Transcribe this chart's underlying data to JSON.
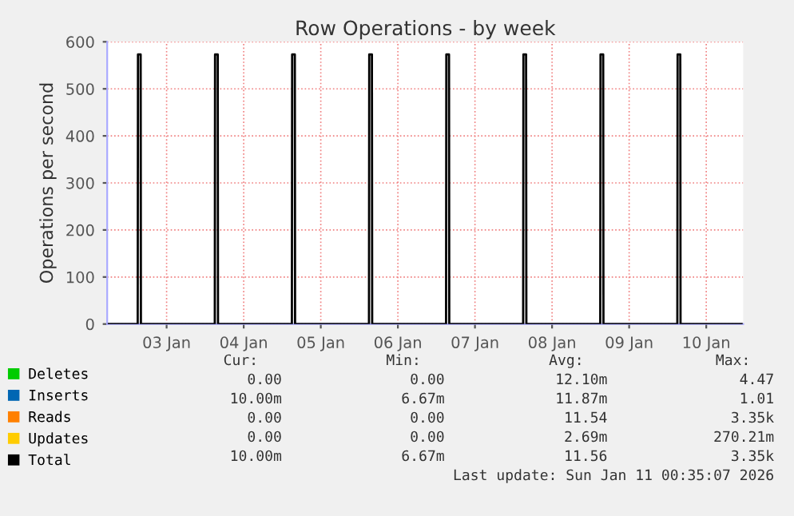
{
  "chart_data": {
    "type": "line",
    "title": "Row Operations - by week",
    "ylabel": "Operations per second",
    "xlim": [
      "2026-01-02T17:30",
      "2026-01-10T23:30"
    ],
    "xticks": [
      {
        "value": "2026-01-03T12:00",
        "label": "03 Jan"
      },
      {
        "value": "2026-01-04T12:00",
        "label": "04 Jan"
      },
      {
        "value": "2026-01-05T12:00",
        "label": "05 Jan"
      },
      {
        "value": "2026-01-06T12:00",
        "label": "06 Jan"
      },
      {
        "value": "2026-01-07T12:00",
        "label": "07 Jan"
      },
      {
        "value": "2026-01-08T12:00",
        "label": "08 Jan"
      },
      {
        "value": "2026-01-09T12:00",
        "label": "09 Jan"
      },
      {
        "value": "2026-01-10T12:00",
        "label": "10 Jan"
      }
    ],
    "ylim": [
      0,
      600
    ],
    "yticks": [
      0,
      100,
      200,
      300,
      400,
      500,
      600
    ],
    "grid": true,
    "legend": "bottom",
    "series": [
      {
        "name": "Deletes",
        "color": "#00cc00"
      },
      {
        "name": "Inserts",
        "color": "#0066b3"
      },
      {
        "name": "Reads",
        "color": "#ff8000"
      },
      {
        "name": "Updates",
        "color": "#ffcc00"
      },
      {
        "name": "Total",
        "color": "#000000",
        "x": [
          "2026-01-02T18:00",
          "2026-01-03T03:00",
          "2026-01-03T03:05",
          "2026-01-03T03:55",
          "2026-01-03T04:00",
          "2026-01-04T03:00",
          "2026-01-04T03:05",
          "2026-01-04T03:55",
          "2026-01-04T04:00",
          "2026-01-05T03:00",
          "2026-01-05T03:05",
          "2026-01-05T03:55",
          "2026-01-05T04:00",
          "2026-01-06T03:00",
          "2026-01-06T03:05",
          "2026-01-06T03:55",
          "2026-01-06T04:00",
          "2026-01-07T03:00",
          "2026-01-07T03:05",
          "2026-01-07T03:55",
          "2026-01-07T04:00",
          "2026-01-08T03:00",
          "2026-01-08T03:05",
          "2026-01-08T03:55",
          "2026-01-08T04:00",
          "2026-01-09T03:00",
          "2026-01-09T03:05",
          "2026-01-09T03:55",
          "2026-01-09T04:00",
          "2026-01-10T03:00",
          "2026-01-10T03:05",
          "2026-01-10T03:55",
          "2026-01-10T04:00",
          "2026-01-10T23:00"
        ],
        "values": [
          0,
          0,
          573,
          573,
          0,
          0,
          573,
          573,
          0,
          0,
          573,
          573,
          0,
          0,
          573,
          573,
          0,
          0,
          573,
          573,
          0,
          0,
          573,
          573,
          0,
          0,
          573,
          573,
          0,
          0,
          573,
          573,
          0,
          0
        ]
      }
    ],
    "annotations": [
      "Cur:",
      "Min:",
      "Avg:",
      "Max:",
      "0.00",
      "0.00",
      "12.10m",
      "4.47",
      "10.00m",
      "6.67m",
      "11.87m",
      "1.01",
      "0.00",
      "0.00",
      "11.54",
      "3.35k",
      "0.00",
      "0.00",
      "2.69m",
      "270.21m",
      "10.00m",
      "6.67m",
      "11.56",
      "3.35k",
      "Last update: Sun Jan 11 00:35:07 2026"
    ]
  }
}
